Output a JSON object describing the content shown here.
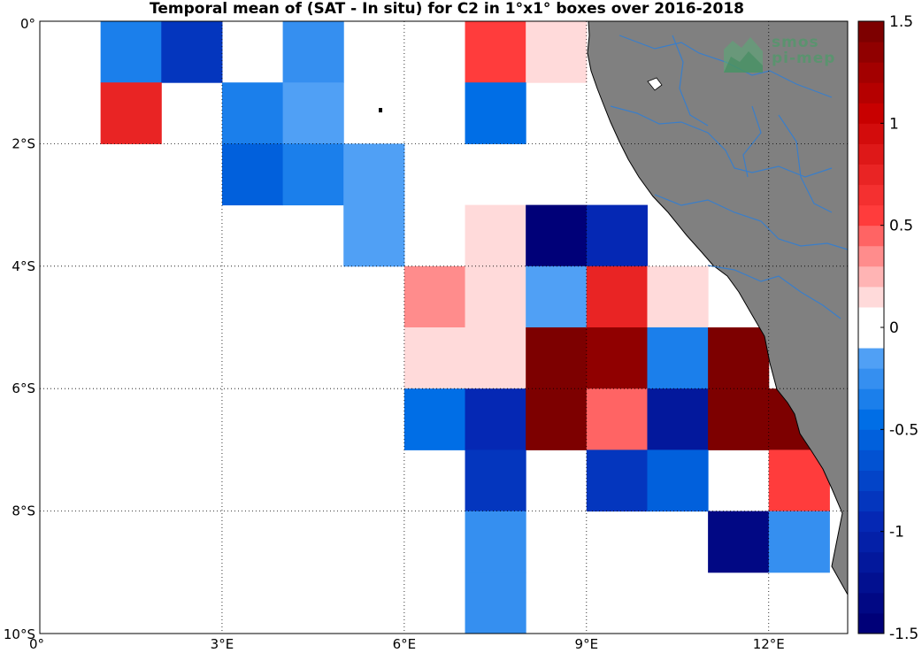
{
  "title": "Temporal mean of (SAT - In situ) for C2 in 1°x1° boxes over 2016-2018",
  "logo": {
    "line1": "smos",
    "line2": "pi-mep"
  },
  "colors": {
    "land": "#808080",
    "river": "#3a7ec9",
    "coast": "#000000",
    "grid": "#000000"
  },
  "chart_data": {
    "type": "heatmap",
    "xlabel": "",
    "ylabel": "",
    "xlim": [
      0,
      13.3
    ],
    "ylim": [
      -10,
      0
    ],
    "x_ticks": [
      {
        "value": 0,
        "label": "0°"
      },
      {
        "value": 3,
        "label": "3°E"
      },
      {
        "value": 6,
        "label": "6°E"
      },
      {
        "value": 9,
        "label": "9°E"
      },
      {
        "value": 12,
        "label": "12°E"
      }
    ],
    "y_ticks": [
      {
        "value": 0,
        "label": "0°"
      },
      {
        "value": -2,
        "label": "2°S"
      },
      {
        "value": -4,
        "label": "4°S"
      },
      {
        "value": -6,
        "label": "6°S"
      },
      {
        "value": -8,
        "label": "8°S"
      },
      {
        "value": -10,
        "label": "10°S"
      }
    ],
    "grid": true,
    "colorbar": {
      "range": [
        -1.5,
        1.5
      ],
      "ticks": [
        {
          "value": 1.5,
          "label": "1.5"
        },
        {
          "value": 1,
          "label": "1"
        },
        {
          "value": 0.5,
          "label": "0.5"
        },
        {
          "value": 0,
          "label": "0"
        },
        {
          "value": -0.5,
          "label": "-0.5"
        },
        {
          "value": -1,
          "label": "-1"
        },
        {
          "value": -1.5,
          "label": "-1.5"
        }
      ]
    },
    "cells": [
      {
        "lon": 1,
        "lat": 0,
        "value": -0.35
      },
      {
        "lon": 2,
        "lat": 0,
        "value": -0.8
      },
      {
        "lon": 4,
        "lat": 0,
        "value": -0.25
      },
      {
        "lon": 7,
        "lat": 0,
        "value": 0.55
      },
      {
        "lon": 8,
        "lat": 0,
        "value": 0.15
      },
      {
        "lon": 1,
        "lat": -1,
        "value": 0.75
      },
      {
        "lon": 3,
        "lat": -1,
        "value": -0.35
      },
      {
        "lon": 4,
        "lat": -1,
        "value": -0.15
      },
      {
        "lon": 7,
        "lat": -1,
        "value": -0.5
      },
      {
        "lon": 3,
        "lat": -2,
        "value": -0.55
      },
      {
        "lon": 4,
        "lat": -2,
        "value": -0.3
      },
      {
        "lon": 5,
        "lat": -2,
        "value": -0.15
      },
      {
        "lon": 5,
        "lat": -3,
        "value": -0.15
      },
      {
        "lon": 7,
        "lat": -3,
        "value": 0.15
      },
      {
        "lon": 8,
        "lat": -3,
        "value": -1.45
      },
      {
        "lon": 9,
        "lat": -3,
        "value": -1.0
      },
      {
        "lon": 6,
        "lat": -4,
        "value": 0.35
      },
      {
        "lon": 7,
        "lat": -4,
        "value": 0.15
      },
      {
        "lon": 8,
        "lat": -4,
        "value": -0.15
      },
      {
        "lon": 9,
        "lat": -4,
        "value": 0.75
      },
      {
        "lon": 10,
        "lat": -4,
        "value": 0.15
      },
      {
        "lon": 6,
        "lat": -5,
        "value": 0.15
      },
      {
        "lon": 7,
        "lat": -5,
        "value": 0.15
      },
      {
        "lon": 8,
        "lat": -5,
        "value": 1.45
      },
      {
        "lon": 9,
        "lat": -5,
        "value": 1.35
      },
      {
        "lon": 10,
        "lat": -5,
        "value": -0.3
      },
      {
        "lon": 11,
        "lat": -5,
        "value": 1.45
      },
      {
        "lon": 6,
        "lat": -6,
        "value": -0.5
      },
      {
        "lon": 7,
        "lat": -6,
        "value": -0.95
      },
      {
        "lon": 8,
        "lat": -6,
        "value": 1.45
      },
      {
        "lon": 9,
        "lat": -6,
        "value": 0.4
      },
      {
        "lon": 10,
        "lat": -6,
        "value": -1.15
      },
      {
        "lon": 11,
        "lat": -6,
        "value": 1.45
      },
      {
        "lon": 12,
        "lat": -6,
        "value": 1.45
      },
      {
        "lon": 7,
        "lat": -7,
        "value": -0.8
      },
      {
        "lon": 9,
        "lat": -7,
        "value": -0.8
      },
      {
        "lon": 10,
        "lat": -7,
        "value": -0.6
      },
      {
        "lon": 12,
        "lat": -7,
        "value": 0.55
      },
      {
        "lon": 7,
        "lat": -8,
        "value": -0.25
      },
      {
        "lon": 11,
        "lat": -8,
        "value": -1.3
      },
      {
        "lon": 12,
        "lat": -8,
        "value": -0.25
      },
      {
        "lon": 7,
        "lat": -9,
        "value": -0.25
      }
    ]
  }
}
